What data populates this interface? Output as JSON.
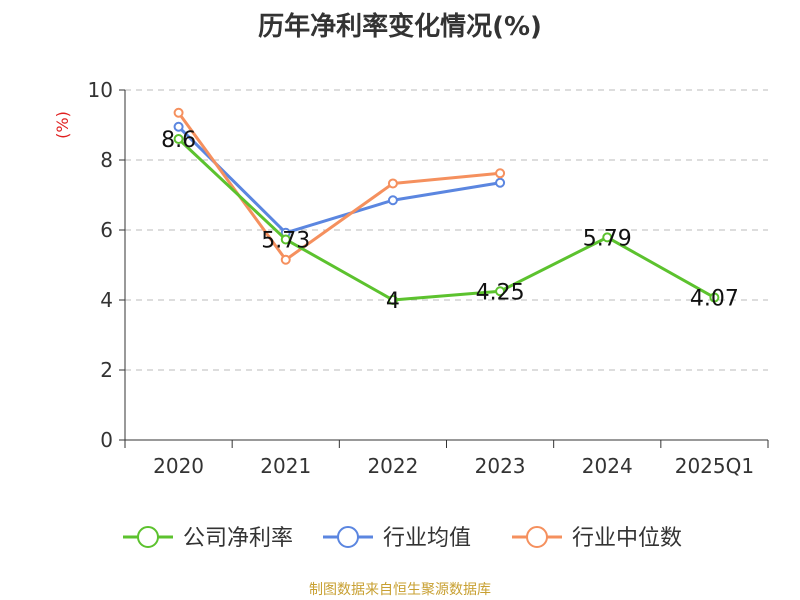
{
  "chart_data": {
    "type": "line",
    "title": "历年净利率变化情况(%)",
    "ylabel": "(%)",
    "xlabel": "",
    "categories": [
      "2020",
      "2021",
      "2022",
      "2023",
      "2024",
      "2025Q1"
    ],
    "ylim": [
      0,
      10
    ],
    "yticks": [
      "0",
      "2",
      "4",
      "6",
      "8",
      "10"
    ],
    "grid": true,
    "legend_position": "bottom",
    "series": [
      {
        "name": "公司净利率",
        "color": "#5cc22e",
        "values": [
          8.6,
          5.73,
          4,
          4.25,
          5.79,
          4.07
        ],
        "labels": [
          "8.6",
          "5.73",
          "4",
          "4.25",
          "5.79",
          "4.07"
        ]
      },
      {
        "name": "行业均值",
        "color": "#5b86e0",
        "values": [
          8.95,
          5.92,
          6.85,
          7.35,
          null,
          null
        ]
      },
      {
        "name": "行业中位数",
        "color": "#f5905e",
        "values": [
          9.35,
          5.15,
          7.33,
          7.62,
          null,
          null
        ]
      }
    ]
  },
  "footer": {
    "source": "制图数据来自恒生聚源数据库"
  }
}
